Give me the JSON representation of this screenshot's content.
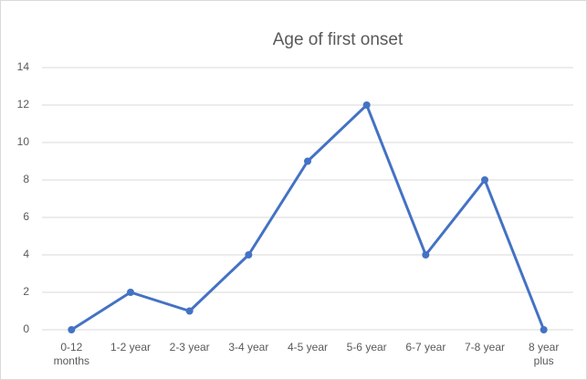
{
  "chart_data": {
    "type": "line",
    "title": "Age of first onset",
    "categories": [
      "0-12 months",
      "1-2 year",
      "2-3 year",
      "3-4 year",
      "4-5 year",
      "5-6 year",
      "6-7 year",
      "7-8 year",
      "8 year plus"
    ],
    "values": [
      0,
      2,
      1,
      4,
      9,
      12,
      4,
      8,
      0
    ],
    "color": "#4472c4",
    "ylim": [
      0,
      14
    ],
    "yticks": [
      0,
      2,
      4,
      6,
      8,
      10,
      12,
      14
    ],
    "grid": true
  }
}
